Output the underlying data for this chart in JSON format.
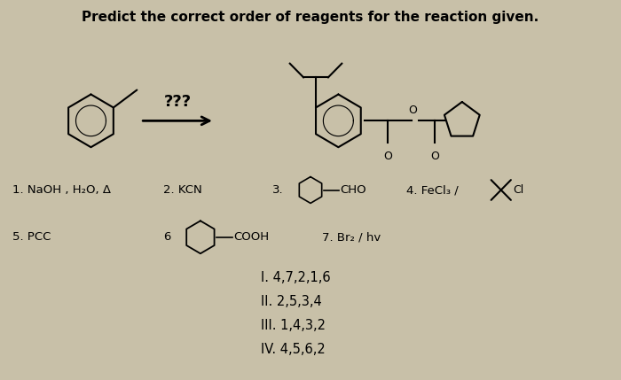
{
  "title": "Predict the correct order of reagents for the reaction given.",
  "title_fontsize": 11,
  "title_fontweight": "bold",
  "bg_color": "#c8c0a8",
  "text_color": "#000000",
  "options": [
    "I. 4,7,2,1,6",
    "II. 2,5,3,4",
    "III. 1,4,3,2",
    "IV. 4,5,6,2"
  ],
  "arrow_label": "???",
  "figsize": [
    7.0,
    4.29
  ],
  "dpi": 100,
  "reagent1": "1. NaOH , H₂O, Δ",
  "reagent2": "2. KCN",
  "reagent4_text": "4. FeCl₃ /",
  "reagent4_cl": "Cl",
  "reagent5": "5. PCC",
  "reagent6_num": "6",
  "reagent6_text": "COOH",
  "reagent7": "7. Br₂ / hv",
  "reagent3_num": "3.",
  "reagent3_text": "CHO"
}
